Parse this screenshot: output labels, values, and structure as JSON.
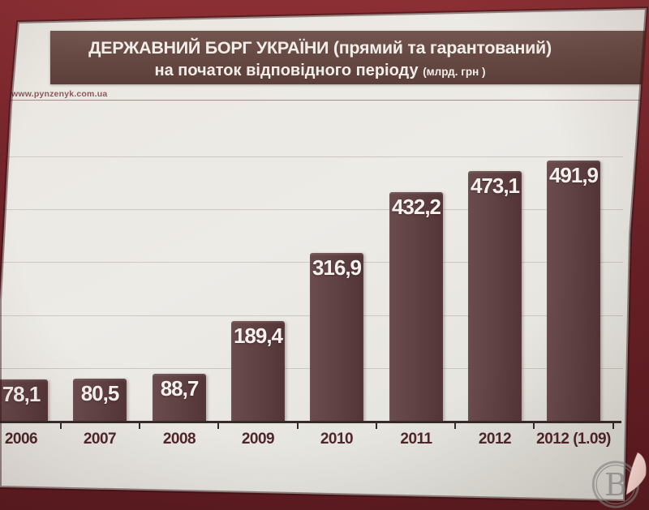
{
  "slide": {
    "title_line1": "ДЕРЖАВНИЙ БОРГ УКРАЇНИ (прямий та гарантований)",
    "title_line2": "на початок відповідного періоду",
    "title_line2_note": "(млрд. грн )",
    "source_url": "www.pynzenyk.com.ua"
  },
  "chart_data": {
    "type": "bar",
    "title": "Державний борг України (прямий та гарантований) на початок відповідного періоду",
    "unit": "млрд. грн",
    "categories": [
      "2006",
      "2007",
      "2008",
      "2009",
      "2010",
      "2011",
      "2012",
      "2012 (1.09)"
    ],
    "values": [
      78.1,
      80.5,
      88.7,
      189.4,
      316.9,
      432.2,
      473.1,
      491.9
    ],
    "value_labels": [
      "78,1",
      "80,5",
      "88,7",
      "189,4",
      "316,9",
      "432,2",
      "473,1",
      "491,9"
    ],
    "xlabel": "",
    "ylabel": "млрд. грн",
    "ylim": [
      0,
      540
    ],
    "gridline_values": [
      100,
      200,
      300,
      400,
      500
    ],
    "legend": null,
    "grid": "faint horizontal"
  },
  "watermark": {
    "logo_letter": "В"
  },
  "colors": {
    "wall": "#6b2127",
    "slide_bg": "#e9e6e0",
    "banner_bg": "#684a44",
    "title_text": "#f1eeea",
    "bar": "#5f4042",
    "value_label": "#f4f1ee",
    "axis_label": "#4f262b",
    "axis_line": "#352b2d",
    "rule_line": "#a88a8b",
    "url_text": "#8a585b"
  }
}
